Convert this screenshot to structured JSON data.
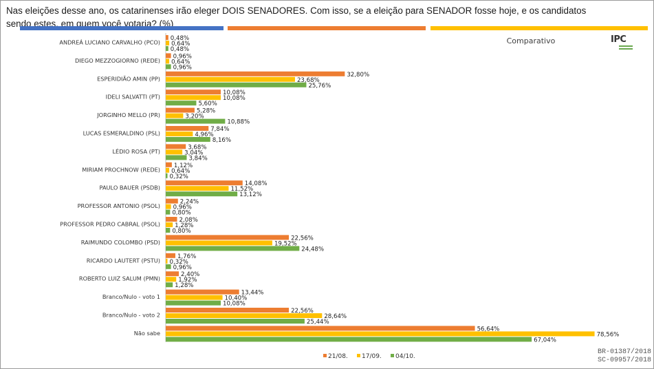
{
  "title": "Nas eleições desse ano, os catarinenses irão eleger DOIS SENADORES. Com isso, se a eleição para SENADOR fosse hoje, e os candidatos sendo estes, em quem você votaria? (%)",
  "logo_text": "IPC",
  "codes": [
    "BR-01387/2018",
    "SC-09957/2018"
  ],
  "colors": {
    "stripe_blue": "#4472c4",
    "stripe_orange": "#ed7d31",
    "stripe_yellow": "#ffc000"
  },
  "chart_data": {
    "type": "bar",
    "orientation": "horizontal",
    "title": "Comparativo",
    "legend_position": "bottom",
    "xlim": [
      0,
      80
    ],
    "grid": false,
    "categories": [
      "ANDREÁ LUCIANO CARVALHO (PCO)",
      "DIEGO MEZZOGIORNO (REDE)",
      "ESPERIDIÃO AMIN (PP)",
      "IDELI SALVATTI (PT)",
      "JORGINHO MELLO (PR)",
      "LUCAS ESMERALDINO (PSL)",
      "LÉDIO ROSA (PT)",
      "MIRIAM PROCHNOW (REDE)",
      "PAULO BAUER (PSDB)",
      "PROFESSOR ANTONIO (PSOL)",
      "PROFESSOR PEDRO CABRAL (PSOL)",
      "RAIMUNDO COLOMBO (PSD)",
      "RICARDO LAUTERT (PSTU)",
      "ROBERTO LUIZ SALUM (PMN)",
      "Branco/Nulo - voto 1",
      "Branco/Nulo - voto 2",
      "Não sabe"
    ],
    "series": [
      {
        "name": "21/08.",
        "color": "#ed7d31",
        "values": [
          0.48,
          0.96,
          32.8,
          10.08,
          5.28,
          7.84,
          3.68,
          1.12,
          14.08,
          2.24,
          2.08,
          22.56,
          1.76,
          2.4,
          13.44,
          22.56,
          56.64
        ]
      },
      {
        "name": "17/09.",
        "color": "#ffc000",
        "values": [
          0.64,
          0.64,
          23.68,
          10.08,
          3.2,
          4.96,
          3.04,
          0.64,
          11.52,
          0.96,
          1.28,
          19.52,
          0.32,
          1.92,
          10.4,
          28.64,
          78.56
        ]
      },
      {
        "name": "04/10.",
        "color": "#70ad47",
        "values": [
          0.48,
          0.96,
          25.76,
          5.6,
          10.88,
          8.16,
          3.84,
          0.32,
          13.12,
          0.8,
          0.8,
          24.48,
          0.96,
          1.28,
          10.08,
          25.44,
          67.04
        ]
      }
    ]
  }
}
